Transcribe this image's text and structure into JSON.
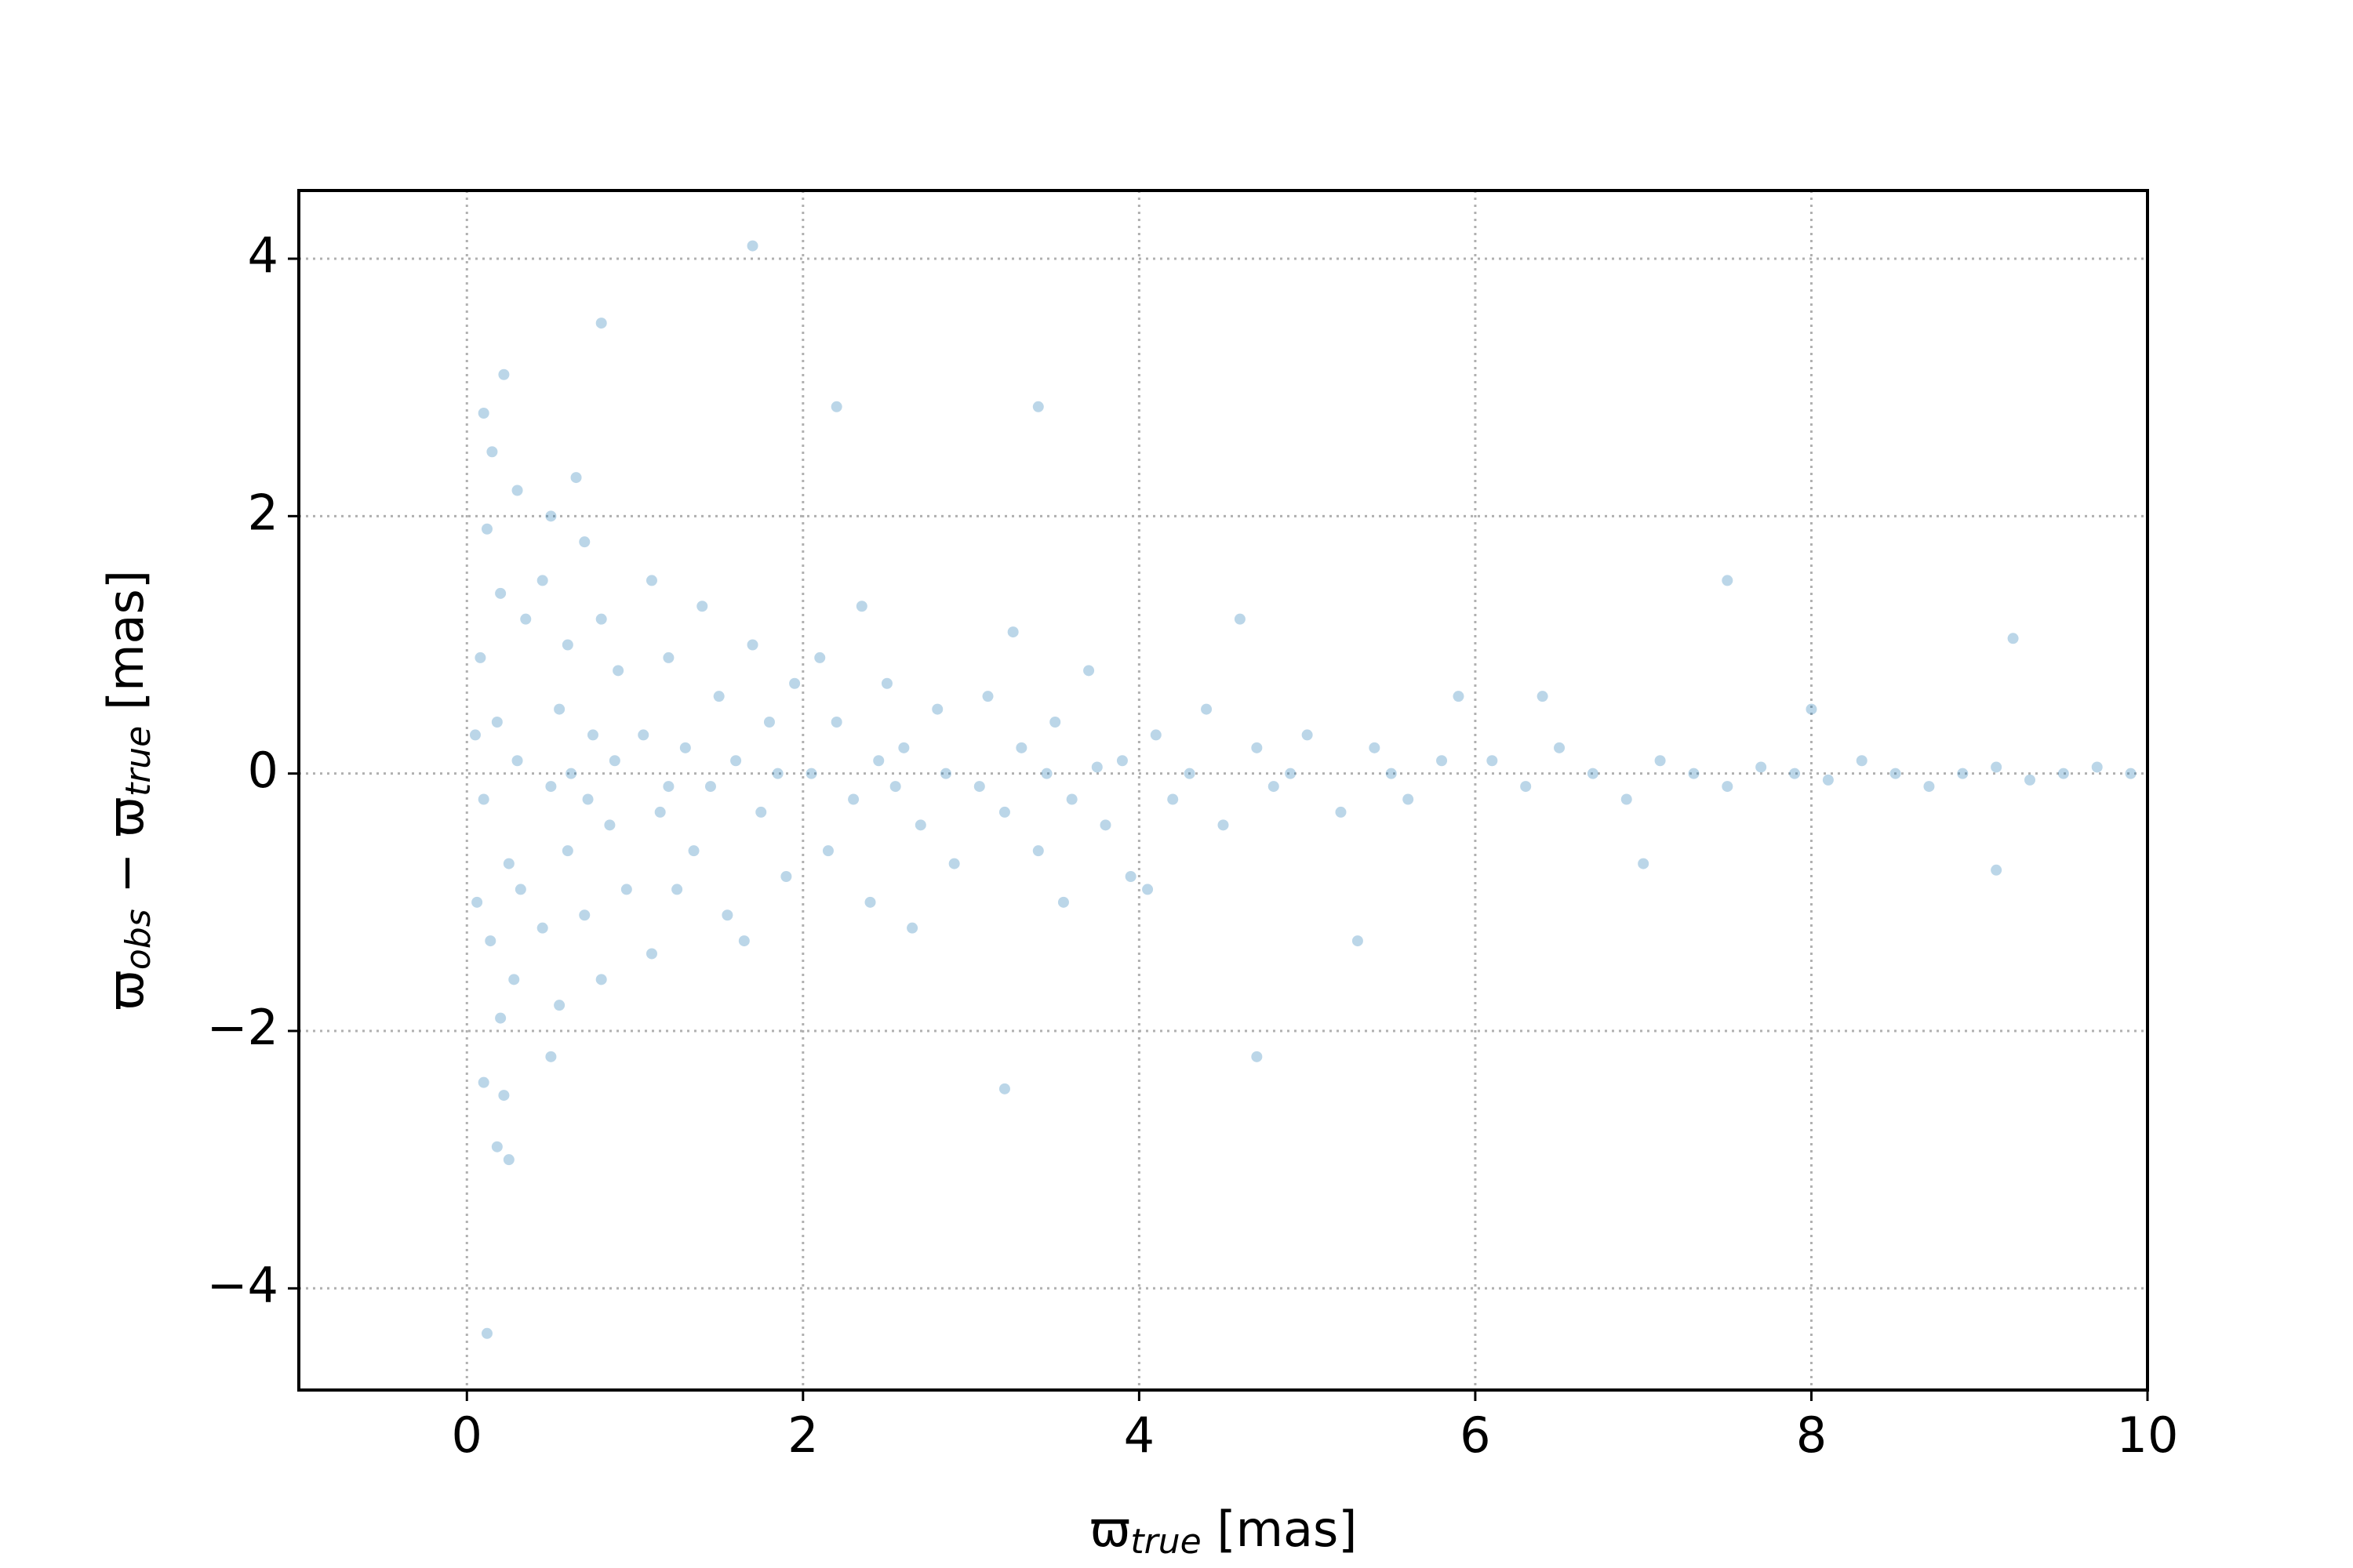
{
  "chart_data": {
    "type": "scatter",
    "xlabel": [
      "ϖ",
      "true",
      " [mas]"
    ],
    "ylabel": [
      "ϖ",
      "obs",
      " − ϖ",
      "true",
      " [mas]"
    ],
    "color": "#1f77b4",
    "alpha": 0.3,
    "grid": true,
    "xlim": [
      -1,
      10
    ],
    "ylim": [
      -4.79,
      4.53
    ],
    "xticks": [
      0,
      2,
      4,
      6,
      8,
      10
    ],
    "yticks": [
      {
        "value": -4,
        "label": "−4"
      },
      {
        "value": -2,
        "label": "−2"
      },
      0,
      2,
      4
    ],
    "x": [
      0.1,
      0.15,
      0.12,
      0.2,
      0.08,
      0.18,
      0.1,
      0.25,
      0.14,
      0.2,
      0.1,
      0.18,
      0.3,
      0.35,
      0.3,
      0.32,
      0.28,
      0.22,
      0.05,
      0.06,
      0.22,
      0.25,
      0.5,
      0.45,
      0.6,
      0.55,
      0.5,
      0.6,
      0.45,
      0.55,
      0.7,
      0.8,
      0.75,
      0.85,
      0.7,
      0.8,
      0.9,
      0.95,
      0.65,
      0.5,
      0.62,
      0.72,
      0.88,
      1.1,
      1.2,
      1.05,
      1.15,
      1.25,
      1.1,
      1.4,
      1.5,
      1.45,
      1.35,
      1.55,
      1.7,
      1.8,
      1.75,
      1.9,
      1.65,
      1.95,
      1.3,
      1.6,
      1.85,
      1.2,
      2.1,
      2.2,
      2.3,
      2.15,
      2.4,
      2.5,
      2.6,
      2.7,
      2.8,
      2.9,
      2.35,
      2.65,
      2.05,
      2.45,
      2.85,
      2.55,
      3.1,
      3.2,
      3.3,
      3.4,
      3.5,
      3.6,
      3.7,
      3.8,
      3.9,
      3.25,
      3.55,
      3.95,
      3.05,
      3.45,
      3.75,
      4.1,
      4.2,
      4.4,
      4.5,
      4.7,
      4.8,
      5.0,
      5.2,
      5.4,
      5.6,
      5.8,
      4.3,
      4.9,
      5.5,
      4.6,
      5.3,
      5.9,
      4.05,
      6.1,
      6.3,
      6.5,
      6.7,
      6.9,
      7.1,
      7.3,
      7.5,
      7.7,
      7.9,
      8.1,
      8.3,
      8.5,
      8.7,
      8.9,
      9.1,
      9.3,
      9.5,
      9.7,
      9.9,
      6.4,
      7.0,
      7.5,
      8.0,
      9.1,
      9.2,
      1.7,
      0.8,
      0.12,
      3.2,
      4.7,
      2.2,
      3.4
    ],
    "y": [
      2.8,
      2.5,
      1.9,
      1.4,
      0.9,
      0.4,
      -0.2,
      -0.7,
      -1.3,
      -1.9,
      -2.4,
      -2.9,
      2.2,
      1.2,
      0.1,
      -0.9,
      -1.6,
      -2.5,
      0.3,
      -1.0,
      3.1,
      -3.0,
      2.0,
      1.5,
      1.0,
      0.5,
      -0.1,
      -0.6,
      -1.2,
      -1.8,
      1.8,
      1.2,
      0.3,
      -0.4,
      -1.1,
      -1.6,
      0.8,
      -0.9,
      2.3,
      -2.2,
      0.0,
      -0.2,
      0.1,
      1.5,
      0.9,
      0.3,
      -0.3,
      -0.9,
      -1.4,
      1.3,
      0.6,
      -0.1,
      -0.6,
      -1.1,
      1.0,
      0.4,
      -0.3,
      -0.8,
      -1.3,
      0.7,
      0.2,
      0.1,
      0.0,
      -0.1,
      0.9,
      0.4,
      -0.2,
      -0.6,
      -1.0,
      0.7,
      0.2,
      -0.4,
      0.5,
      -0.7,
      1.3,
      -1.2,
      0.0,
      0.1,
      0.0,
      -0.1,
      0.6,
      -0.3,
      0.2,
      -0.6,
      0.4,
      -0.2,
      0.8,
      -0.4,
      0.1,
      1.1,
      -1.0,
      -0.8,
      -0.1,
      0.0,
      0.05,
      0.3,
      -0.2,
      0.5,
      -0.4,
      0.2,
      -0.1,
      0.3,
      -0.3,
      0.2,
      -0.2,
      0.1,
      0.0,
      0.0,
      0.0,
      1.2,
      -1.3,
      0.6,
      -0.9,
      0.1,
      -0.1,
      0.2,
      0.0,
      -0.2,
      0.1,
      0.0,
      -0.1,
      0.05,
      0.0,
      -0.05,
      0.1,
      0.0,
      -0.1,
      0.0,
      0.05,
      -0.05,
      0.0,
      0.05,
      0.0,
      0.6,
      -0.7,
      1.5,
      0.5,
      -0.75,
      1.05,
      4.1,
      3.5,
      -4.35,
      -2.45,
      -2.2,
      2.85,
      2.85
    ]
  }
}
